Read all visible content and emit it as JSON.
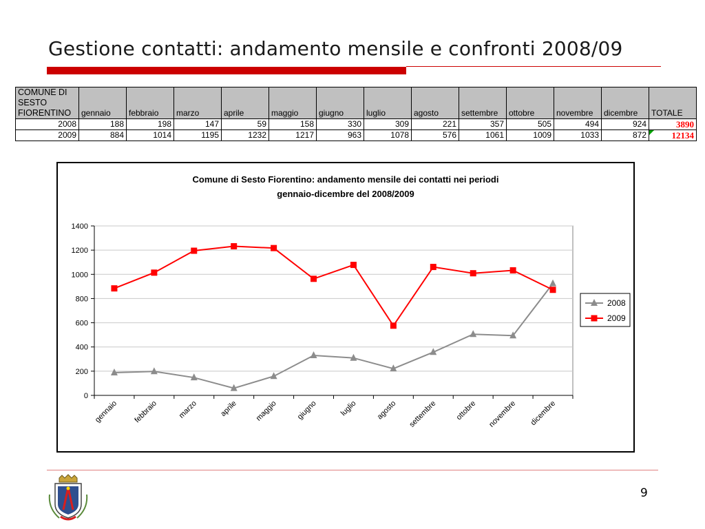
{
  "slide": {
    "title": "Gestione contatti: andamento mensile e confronti 2008/09",
    "page_number": "9"
  },
  "table": {
    "header_first": [
      "COMUNE DI",
      "SESTO",
      "FIORENTINO"
    ],
    "months": [
      "gennaio",
      "febbraio",
      "marzo",
      "aprile",
      "maggio",
      "giugno",
      "luglio",
      "agosto",
      "settembre",
      "ottobre",
      "novembre",
      "dicembre"
    ],
    "total_label": "TOTALE",
    "rows": [
      {
        "year": "2008",
        "values": [
          "188",
          "198",
          "147",
          "59",
          "158",
          "330",
          "309",
          "221",
          "357",
          "505",
          "494",
          "924"
        ],
        "total": "3890"
      },
      {
        "year": "2009",
        "values": [
          "884",
          "1014",
          "1195",
          "1232",
          "1217",
          "963",
          "1078",
          "576",
          "1061",
          "1009",
          "1033",
          "872"
        ],
        "total": "12134"
      }
    ]
  },
  "chart_data": {
    "type": "line",
    "title": "Comune di Sesto Fiorentino: andamento mensile dei contatti nei periodi gennaio-dicembre del 2008/2009",
    "title_lines": [
      "Comune di Sesto Fiorentino: andamento mensile dei contatti nei periodi",
      "gennaio-dicembre del 2008/2009"
    ],
    "categories": [
      "gennaio",
      "febbraio",
      "marzo",
      "aprile",
      "maggio",
      "giugno",
      "luglio",
      "agosto",
      "settembre",
      "ottobre",
      "novembre",
      "dicembre"
    ],
    "series": [
      {
        "name": "2008",
        "values": [
          188,
          198,
          147,
          59,
          158,
          330,
          309,
          221,
          357,
          505,
          494,
          924
        ],
        "color": "#8c8c8c",
        "marker": "triangle"
      },
      {
        "name": "2009",
        "values": [
          884,
          1014,
          1195,
          1232,
          1217,
          963,
          1078,
          576,
          1061,
          1009,
          1033,
          872
        ],
        "color": "#ff0000",
        "marker": "square"
      }
    ],
    "ylim": [
      0,
      1400
    ],
    "yticks": [
      0,
      200,
      400,
      600,
      800,
      1000,
      1200,
      1400
    ],
    "ytick_labels": [
      "0",
      "200",
      "400",
      "600",
      "800",
      "1000",
      "1200",
      "1400"
    ],
    "grid": true,
    "legend_position": "right",
    "xlabel": "",
    "ylabel": ""
  }
}
